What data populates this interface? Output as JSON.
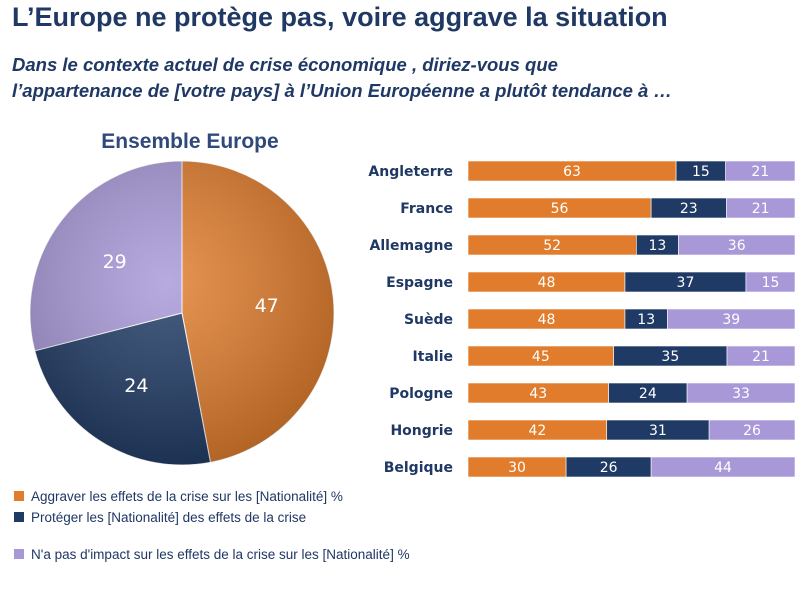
{
  "title": "L’Europe ne protège pas, voire aggrave la situation",
  "subtitle_lines": [
    "Dans le contexte actuel de crise économique , diriez-vous que",
    "l’appartenance de [votre pays] à l’Union Européenne a plutôt tendance à …"
  ],
  "colors": {
    "aggraver": "#e07c2c",
    "proteger": "#1f3a64",
    "pas_impact": "#a898d8"
  },
  "chart_data": [
    {
      "type": "pie",
      "title": "Ensemble Europe",
      "slices": [
        {
          "key": "aggraver",
          "value": 47
        },
        {
          "key": "proteger",
          "value": 24
        },
        {
          "key": "pas_impact",
          "value": 29
        }
      ]
    },
    {
      "type": "bar",
      "orientation": "horizontal-stacked",
      "categories": [
        "Angleterre",
        "France",
        "Allemagne",
        "Espagne",
        "Suède",
        "Italie",
        "Pologne",
        "Hongrie",
        "Belgique"
      ],
      "series": [
        {
          "key": "aggraver",
          "values": [
            63,
            56,
            52,
            48,
            48,
            45,
            43,
            42,
            30
          ]
        },
        {
          "key": "proteger",
          "values": [
            15,
            23,
            13,
            37,
            13,
            35,
            24,
            31,
            26
          ]
        },
        {
          "key": "pas_impact",
          "values": [
            21,
            21,
            36,
            15,
            39,
            21,
            33,
            26,
            44
          ]
        }
      ]
    }
  ],
  "legend": [
    {
      "key": "aggraver",
      "label": "Aggraver les effets de la crise sur les [Nationalité] %"
    },
    {
      "key": "proteger",
      "label": "Protéger les [Nationalité] des effets de la crise"
    },
    {
      "key": "pas_impact",
      "label": "N'a pas d'impact sur les effets de la crise sur les [Nationalité] %"
    }
  ]
}
